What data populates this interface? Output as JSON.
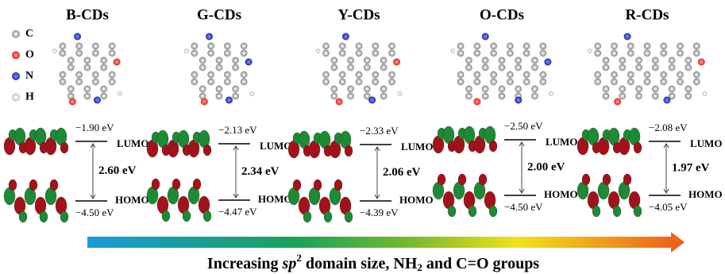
{
  "legend": [
    "C",
    "O",
    "N",
    "H"
  ],
  "panels": [
    {
      "title": "B-CDs",
      "lumo_energy": "−1.90 eV",
      "homo_energy": "−4.50 eV",
      "gap": "2.60 eV",
      "lumo_label": "LUMO",
      "homo_label": "HOMO"
    },
    {
      "title": "G-CDs",
      "lumo_energy": "−2.13 eV",
      "homo_energy": "−4.47 eV",
      "gap": "2.34 eV",
      "lumo_label": "LUMO",
      "homo_label": "HOMO"
    },
    {
      "title": "Y-CDs",
      "lumo_energy": "−2.33 eV",
      "homo_energy": "−4.39 eV",
      "gap": "2.06 eV",
      "lumo_label": "LUMO",
      "homo_label": "HOMO"
    },
    {
      "title": "O-CDs",
      "lumo_energy": "−2.50 eV",
      "homo_energy": "−4.50 eV",
      "gap": "2.00 eV",
      "lumo_label": "LUMO",
      "homo_label": "HOMO"
    },
    {
      "title": "R-CDs",
      "lumo_energy": "−2.08 eV",
      "homo_energy": "−4.05 eV",
      "gap": "1.97 eV",
      "lumo_label": "LUMO",
      "homo_label": "HOMO"
    }
  ],
  "caption": [
    "Increasing ",
    "sp",
    "2",
    " domain size, NH",
    "2",
    " and C=O groups"
  ]
}
